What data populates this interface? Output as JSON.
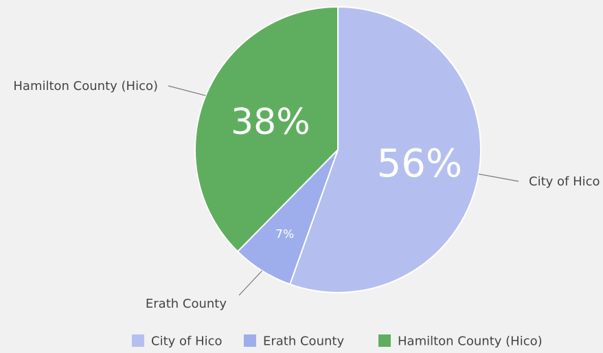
{
  "chart_data": {
    "type": "pie",
    "slices": [
      {
        "label": "City of Hico",
        "value": 56,
        "display": "56%",
        "color": "#b4bff0"
      },
      {
        "label": "Erath County",
        "value": 7,
        "display": "7%",
        "color": "#9eaeed"
      },
      {
        "label": "Hamilton County (Hico)",
        "value": 38,
        "display": "38%",
        "color": "#5fae5f"
      }
    ],
    "start_angle": "12 o'clock, clockwise",
    "legend_position": "bottom",
    "slice_labels": "inside (percent) and outside callouts (names)"
  }
}
